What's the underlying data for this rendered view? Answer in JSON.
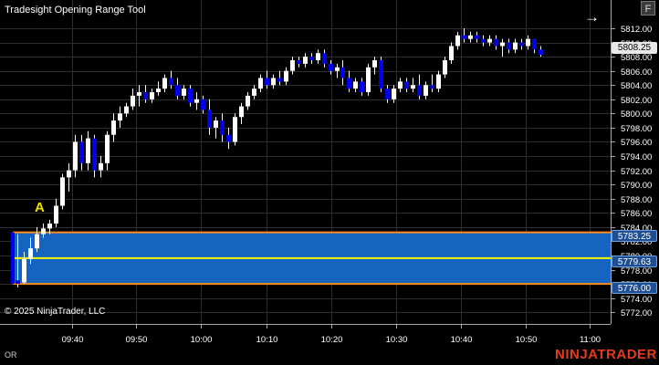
{
  "window": {
    "title": "Tradesight Opening Range Tool",
    "f_button": "F",
    "copyright": "© 2025 NinjaTrader, LLC",
    "bottom_left_label": "OR",
    "brand": "NINJATRADER"
  },
  "marker": {
    "label": "A"
  },
  "colors": {
    "background": "#000000",
    "grid": "#2e2e2e",
    "up_candle": "#ffffff",
    "down_candle": "#0000ee",
    "range_fill": "#1565c0",
    "range_border": "#ff8c1a",
    "range_mid": "#f5f500"
  },
  "price_axis": {
    "ticks": [
      "5812.00",
      "5810.00",
      "5808.00",
      "5806.00",
      "5804.00",
      "5802.00",
      "5800.00",
      "5798.00",
      "5796.00",
      "5794.00",
      "5792.00",
      "5790.00",
      "5788.00",
      "5786.00",
      "5784.00",
      "5782.00",
      "5780.00",
      "5778.00",
      "5776.00",
      "5774.00",
      "5772.00"
    ],
    "last_price": "5808.25",
    "or_high": "5783.25",
    "or_mid": "5779.63",
    "or_low": "5776.00"
  },
  "time_axis": {
    "ticks": [
      "09:40",
      "09:50",
      "10:00",
      "10:10",
      "10:20",
      "10:30",
      "10:40",
      "10:50",
      "11:00"
    ]
  },
  "chart_data": {
    "type": "candlestick",
    "ylim": [
      5771,
      5813.5
    ],
    "xlim": [
      9.5,
      97
    ],
    "opening_range": {
      "high": 5783.25,
      "mid": 5779.63,
      "low": 5776.0
    },
    "candles": [
      [
        5776.5,
        5783,
        5775.5,
        5776
      ],
      [
        5776.2,
        5780.5,
        5776,
        5779.5
      ],
      [
        5779.5,
        5782.5,
        5778.8,
        5781
      ],
      [
        5781,
        5784,
        5780.5,
        5783
      ],
      [
        5783,
        5784.5,
        5782.5,
        5783.8
      ],
      [
        5783.8,
        5785,
        5783,
        5784.5
      ],
      [
        5784.5,
        5788,
        5784,
        5787
      ],
      [
        5787,
        5791.5,
        5786.5,
        5791
      ],
      [
        5791,
        5793,
        5789,
        5792
      ],
      [
        5792,
        5797,
        5791,
        5796
      ],
      [
        5796,
        5797,
        5792,
        5793
      ],
      [
        5793,
        5797.5,
        5792,
        5796.5
      ],
      [
        5796.5,
        5797,
        5791,
        5792
      ],
      [
        5792,
        5794,
        5791,
        5793
      ],
      [
        5793,
        5797.5,
        5792,
        5797
      ],
      [
        5797,
        5800,
        5796,
        5799
      ],
      [
        5799,
        5801,
        5798,
        5800
      ],
      [
        5800,
        5801.5,
        5799.5,
        5801
      ],
      [
        5801,
        5803.5,
        5800.5,
        5802.5
      ],
      [
        5802.5,
        5804,
        5801,
        5803
      ],
      [
        5803,
        5804,
        5801.5,
        5802
      ],
      [
        5802,
        5803.5,
        5801.5,
        5803
      ],
      [
        5803,
        5804.5,
        5802.5,
        5803.5
      ],
      [
        5803.5,
        5805.5,
        5803,
        5805
      ],
      [
        5805,
        5806,
        5803.5,
        5804
      ],
      [
        5804,
        5805,
        5802,
        5802.5
      ],
      [
        5802.5,
        5804,
        5802,
        5803.5
      ],
      [
        5803.5,
        5804,
        5801,
        5801.5
      ],
      [
        5801.5,
        5803,
        5800.5,
        5802
      ],
      [
        5802,
        5802.5,
        5800,
        5800.5
      ],
      [
        5800.5,
        5802,
        5797,
        5798
      ],
      [
        5798,
        5799.5,
        5796.5,
        5799
      ],
      [
        5799,
        5800,
        5796,
        5797
      ],
      [
        5797,
        5798,
        5795,
        5796
      ],
      [
        5796,
        5800,
        5795.5,
        5799.5
      ],
      [
        5799.5,
        5801.5,
        5798.5,
        5801
      ],
      [
        5801,
        5803,
        5800.5,
        5802.5
      ],
      [
        5802.5,
        5804,
        5802,
        5803.5
      ],
      [
        5803.5,
        5805.5,
        5803,
        5805
      ],
      [
        5805,
        5806,
        5803.5,
        5804
      ],
      [
        5804,
        5805.5,
        5803.5,
        5805
      ],
      [
        5805,
        5806,
        5804,
        5804.5
      ],
      [
        5804.5,
        5806.5,
        5804,
        5806
      ],
      [
        5806,
        5808,
        5805.5,
        5807.5
      ],
      [
        5807.5,
        5808,
        5806.5,
        5807
      ],
      [
        5807,
        5808.5,
        5806.5,
        5808
      ],
      [
        5808,
        5808.5,
        5807,
        5807.5
      ],
      [
        5807.5,
        5809,
        5807,
        5808.5
      ],
      [
        5808.5,
        5809,
        5806.5,
        5807
      ],
      [
        5807,
        5807.5,
        5805.5,
        5806
      ],
      [
        5806,
        5807,
        5805,
        5806.5
      ],
      [
        5806.5,
        5807.5,
        5804,
        5805
      ],
      [
        5805,
        5806,
        5803,
        5803.5
      ],
      [
        5803.5,
        5805,
        5803,
        5804.5
      ],
      [
        5804.5,
        5805,
        5802.5,
        5803
      ],
      [
        5803,
        5807,
        5802.5,
        5806.5
      ],
      [
        5806.5,
        5808,
        5805.5,
        5807.5
      ],
      [
        5807.5,
        5808,
        5803,
        5803.5
      ],
      [
        5803.5,
        5804,
        5801.5,
        5802
      ],
      [
        5802,
        5804,
        5801.5,
        5803.5
      ],
      [
        5803.5,
        5805,
        5803,
        5804.5
      ],
      [
        5804.5,
        5805,
        5803,
        5803.5
      ],
      [
        5803.5,
        5805,
        5803,
        5804
      ],
      [
        5804,
        5805.5,
        5802,
        5802.5
      ],
      [
        5802.5,
        5804.5,
        5802,
        5804
      ],
      [
        5804,
        5805.5,
        5803,
        5803.5
      ],
      [
        5803.5,
        5806,
        5803,
        5805.5
      ],
      [
        5805.5,
        5808,
        5805,
        5807.5
      ],
      [
        5807.5,
        5810,
        5807,
        5809.5
      ],
      [
        5809.5,
        5811.5,
        5809,
        5811
      ],
      [
        5811,
        5812,
        5810,
        5810.5
      ],
      [
        5810.5,
        5811.5,
        5810,
        5811
      ],
      [
        5811,
        5811.5,
        5810,
        5810.5
      ],
      [
        5810.5,
        5811,
        5809.5,
        5810
      ],
      [
        5810,
        5811,
        5809.5,
        5810.5
      ],
      [
        5810.5,
        5811,
        5809,
        5809.5
      ],
      [
        5809.5,
        5810.5,
        5808,
        5810
      ],
      [
        5810,
        5810.5,
        5808.5,
        5809
      ],
      [
        5809,
        5810.5,
        5808.5,
        5810
      ],
      [
        5810,
        5810.5,
        5809,
        5809.5
      ],
      [
        5809.5,
        5811,
        5809,
        5810.5
      ],
      [
        5810.5,
        5810.5,
        5808.5,
        5809
      ],
      [
        5809,
        5809.5,
        5808,
        5808.25
      ]
    ]
  }
}
